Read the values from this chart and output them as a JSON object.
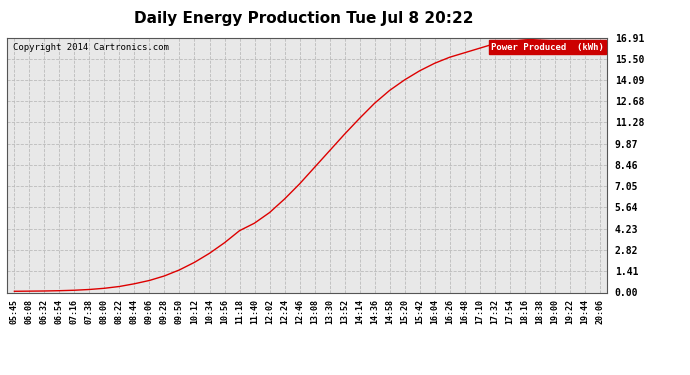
{
  "title": "Daily Energy Production Tue Jul 8 20:22",
  "copyright": "Copyright 2014 Cartronics.com",
  "legend_label": "Power Produced  (kWh)",
  "line_color": "#dd0000",
  "background_color": "#ffffff",
  "plot_bg_color": "#e8e8e8",
  "grid_color": "#bbbbbb",
  "yticks": [
    0.0,
    1.41,
    2.82,
    4.23,
    5.64,
    7.05,
    8.46,
    9.87,
    11.28,
    12.68,
    14.09,
    15.5,
    16.91
  ],
  "xtick_labels": [
    "05:45",
    "06:08",
    "06:32",
    "06:54",
    "07:16",
    "07:38",
    "08:00",
    "08:22",
    "08:44",
    "09:06",
    "09:28",
    "09:50",
    "10:12",
    "10:34",
    "10:56",
    "11:18",
    "11:40",
    "12:02",
    "12:24",
    "12:46",
    "13:08",
    "13:30",
    "13:52",
    "14:14",
    "14:36",
    "14:58",
    "15:20",
    "15:42",
    "16:04",
    "16:26",
    "16:48",
    "17:10",
    "17:32",
    "17:54",
    "18:16",
    "18:38",
    "19:00",
    "19:22",
    "19:44",
    "20:06"
  ],
  "ymax": 16.91,
  "ymin": 0.0,
  "curve_y": [
    0.08,
    0.09,
    0.1,
    0.12,
    0.15,
    0.2,
    0.28,
    0.4,
    0.58,
    0.8,
    1.1,
    1.5,
    2.0,
    2.6,
    3.3,
    4.1,
    4.6,
    5.3,
    6.2,
    7.2,
    8.3,
    9.4,
    10.5,
    11.55,
    12.55,
    13.4,
    14.1,
    14.7,
    15.2,
    15.6,
    15.9,
    16.2,
    16.5,
    16.65,
    16.75,
    16.82,
    16.87,
    16.89,
    16.9,
    16.91
  ]
}
